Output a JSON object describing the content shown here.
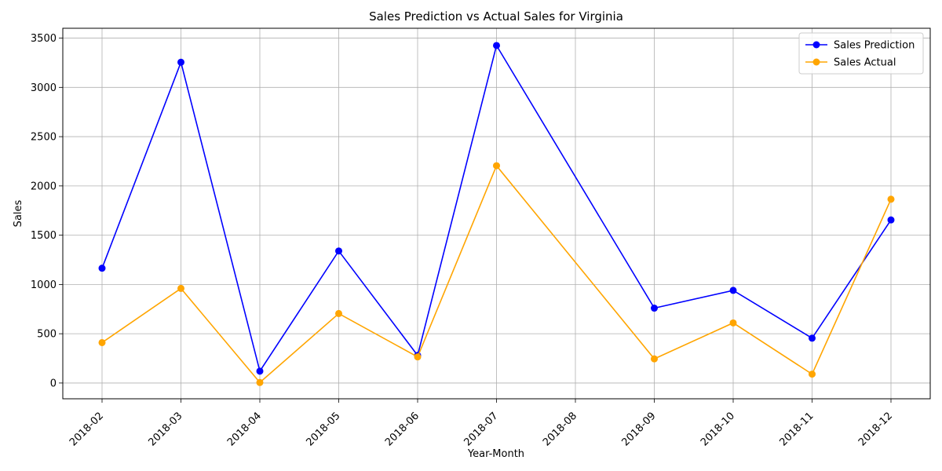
{
  "chart_data": {
    "type": "line",
    "title": "Sales Prediction vs Actual Sales for Virginia",
    "xlabel": "Year-Month",
    "ylabel": "Sales",
    "x": [
      "2018-02",
      "2018-03",
      "2018-04",
      "2018-05",
      "2018-06",
      "2018-07",
      "2018-09",
      "2018-10",
      "2018-11",
      "2018-12"
    ],
    "x_ticks": [
      "2018-02",
      "2018-03",
      "2018-04",
      "2018-05",
      "2018-06",
      "2018-07",
      "2018-08",
      "2018-09",
      "2018-10",
      "2018-11",
      "2018-12"
    ],
    "y_ticks": [
      0,
      500,
      1000,
      1500,
      2000,
      2500,
      3000,
      3500
    ],
    "ylim": [
      -160,
      3600
    ],
    "grid": true,
    "legend_position": "upper right",
    "series": [
      {
        "name": "Sales Prediction",
        "color": "#0000ff",
        "values": [
          1165,
          3255,
          120,
          1340,
          280,
          3425,
          760,
          940,
          455,
          1655
        ]
      },
      {
        "name": "Sales Actual",
        "color": "#ffa500",
        "values": [
          410,
          960,
          5,
          705,
          265,
          2205,
          245,
          610,
          90,
          1865
        ]
      }
    ]
  }
}
